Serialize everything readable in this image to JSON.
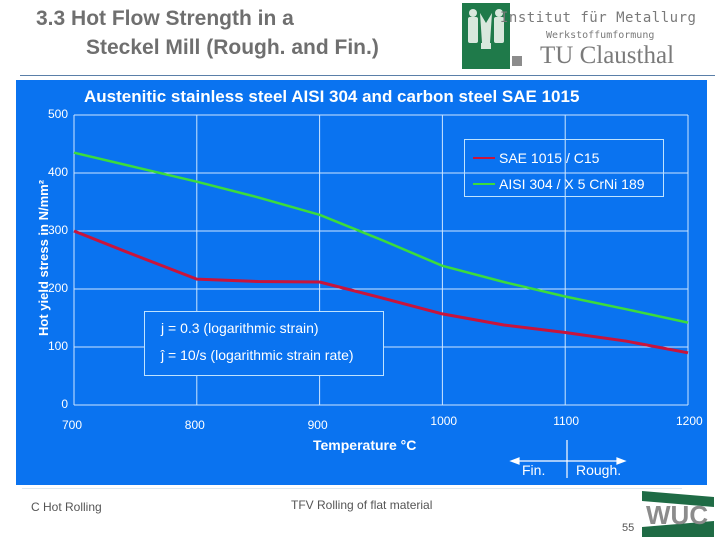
{
  "header": {
    "title_line1": "3.3  Hot Flow Strength in a",
    "title_line2": "Steckel Mill (Rough. and Fin.)",
    "institute_line1": "Institut für Metallurg",
    "institute_line2": "Werkstoffumformung",
    "institute_line3": "TU Clausthal",
    "logo_icon": "university-crest-icon"
  },
  "colors": {
    "panel_bg": "#0a73f0",
    "sae_line": "#c8143c",
    "aisi_line": "#3cdc3c",
    "grid": "#cde6ff",
    "logo_green": "#1f7a4a",
    "title_grey": "#6f6f6f"
  },
  "chart_data": {
    "type": "line",
    "title": "Austenitic stainless steel AISI 304 and carbon steel SAE 1015",
    "xlabel": "Temperature  °C",
    "ylabel": "Hot yield stress in N/mm²",
    "xlim": [
      700,
      1200
    ],
    "ylim": [
      0,
      500
    ],
    "x_ticks": [
      "700",
      "800",
      "900",
      "1000",
      "1100",
      "1200"
    ],
    "y_ticks": [
      "0",
      "100",
      "200",
      "300",
      "400",
      "500"
    ],
    "grid": true,
    "legend_position": "upper right",
    "x": [
      700,
      750,
      800,
      850,
      900,
      950,
      1000,
      1050,
      1100,
      1150,
      1200
    ],
    "series": [
      {
        "name": "SAE 1015 / C15",
        "color": "#c8143c",
        "values": [
          300,
          258,
          217,
          213,
          212,
          185,
          157,
          138,
          125,
          110,
          90
        ]
      },
      {
        "name": "AISI 304 / X 5 CrNi 189",
        "color": "#3cdc3c",
        "values": [
          435,
          410,
          385,
          358,
          328,
          285,
          240,
          212,
          187,
          165,
          142
        ]
      }
    ],
    "annotations": [
      "j = 0.3 (logarithmic strain)",
      "ĵ = 10/s (logarithmic strain rate)"
    ],
    "phase_labels": {
      "left": "Fin.",
      "right": "Rough."
    }
  },
  "footer": {
    "left": "C Hot Rolling",
    "center": "TFV Rolling of flat material",
    "page": "55",
    "logo_text": "WUC"
  }
}
